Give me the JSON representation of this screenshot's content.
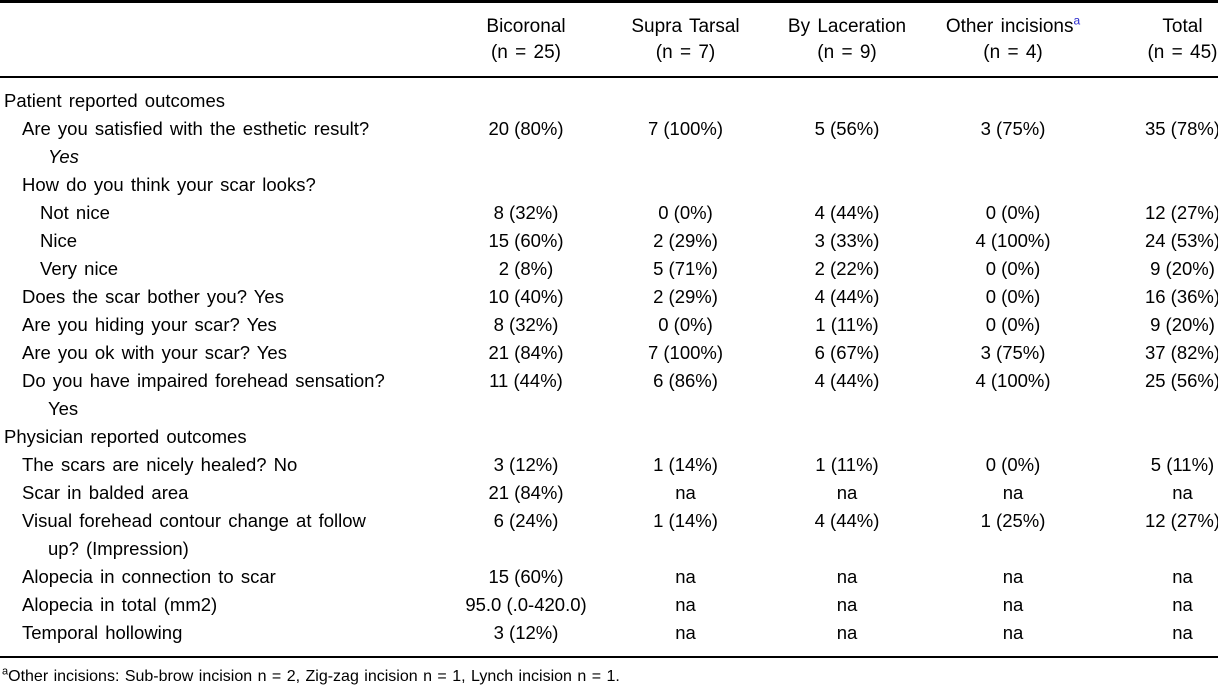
{
  "page": {
    "background": "#ffffff",
    "text_color": "#000000",
    "footnote_link_color": "#2929cc"
  },
  "table": {
    "columns": [
      {
        "key": "bicoronal",
        "label": "Bicoronal",
        "sub": "(n = 25)"
      },
      {
        "key": "supra-tarsal",
        "label": "Supra Tarsal",
        "sub": "(n = 7)"
      },
      {
        "key": "by-laceration",
        "label": "By Laceration",
        "sub": "(n = 9)"
      },
      {
        "key": "other-incisions",
        "label": "Other incisions",
        "sup": "a",
        "sub": "(n = 4)"
      },
      {
        "key": "total",
        "label": "Total",
        "sub": "(n = 45)"
      }
    ],
    "rows": [
      {
        "label": "Patient reported outcomes",
        "indent": 0,
        "section": true,
        "values": [
          "",
          "",
          "",
          "",
          ""
        ]
      },
      {
        "label": "Are you satisfied with the esthetic result?",
        "indent": 1,
        "label2": "Yes",
        "label2_italic": true,
        "values": [
          "20 (80%)",
          "7 (100%)",
          "5 (56%)",
          "3 (75%)",
          "35 (78%)"
        ]
      },
      {
        "label": "How do you think your scar looks?",
        "indent": 1,
        "values": [
          "",
          "",
          "",
          "",
          ""
        ]
      },
      {
        "label": "Not nice",
        "indent": 2,
        "values": [
          "8 (32%)",
          "0 (0%)",
          "4 (44%)",
          "0 (0%)",
          "12 (27%)"
        ]
      },
      {
        "label": "Nice",
        "indent": 2,
        "values": [
          "15 (60%)",
          "2 (29%)",
          "3 (33%)",
          "4 (100%)",
          "24 (53%)"
        ]
      },
      {
        "label": "Very nice",
        "indent": 2,
        "values": [
          "2 (8%)",
          "5 (71%)",
          "2 (22%)",
          "0 (0%)",
          "9 (20%)"
        ]
      },
      {
        "label": "Does the scar bother you? Yes",
        "indent": 1,
        "values": [
          "10 (40%)",
          "2 (29%)",
          "4 (44%)",
          "0 (0%)",
          "16 (36%)"
        ]
      },
      {
        "label": "Are you hiding your scar? Yes",
        "indent": 1,
        "values": [
          "8 (32%)",
          "0 (0%)",
          "1 (11%)",
          "0 (0%)",
          "9 (20%)"
        ]
      },
      {
        "label": "Are you ok with your scar? Yes",
        "indent": 1,
        "values": [
          "21 (84%)",
          "7 (100%)",
          "6 (67%)",
          "3 (75%)",
          "37 (82%)"
        ]
      },
      {
        "label": "Do you have impaired forehead sensation?",
        "indent": 1,
        "label2": "Yes",
        "label2_italic": false,
        "values": [
          "11 (44%)",
          "6 (86%)",
          "4 (44%)",
          "4 (100%)",
          "25 (56%)"
        ]
      },
      {
        "label": "Physician reported outcomes",
        "indent": 0,
        "section": true,
        "values": [
          "",
          "",
          "",
          "",
          ""
        ]
      },
      {
        "label": "The scars are nicely healed? No",
        "indent": 1,
        "values": [
          "3 (12%)",
          "1 (14%)",
          "1 (11%)",
          "0 (0%)",
          "5 (11%)"
        ]
      },
      {
        "label": "Scar in balded area",
        "indent": 1,
        "values": [
          "21 (84%)",
          "na",
          "na",
          "na",
          "na"
        ]
      },
      {
        "label": "Visual forehead contour change at follow",
        "indent": 1,
        "label2": "up? (Impression)",
        "label2_italic": false,
        "values": [
          "6 (24%)",
          "1 (14%)",
          "4 (44%)",
          "1 (25%)",
          "12 (27%)"
        ]
      },
      {
        "label": "Alopecia in connection to scar",
        "indent": 1,
        "values": [
          "15 (60%)",
          "na",
          "na",
          "na",
          "na"
        ]
      },
      {
        "label": "Alopecia in total (mm2)",
        "indent": 1,
        "values": [
          "95.0 (.0-420.0)",
          "na",
          "na",
          "na",
          "na"
        ]
      },
      {
        "label": "Temporal hollowing",
        "indent": 1,
        "values": [
          "3 (12%)",
          "na",
          "na",
          "na",
          "na"
        ]
      }
    ]
  },
  "footnote": {
    "marker": "a",
    "text": "Other incisions: Sub-brow incision n = 2, Zig-zag incision n = 1, Lynch incision n = 1."
  }
}
